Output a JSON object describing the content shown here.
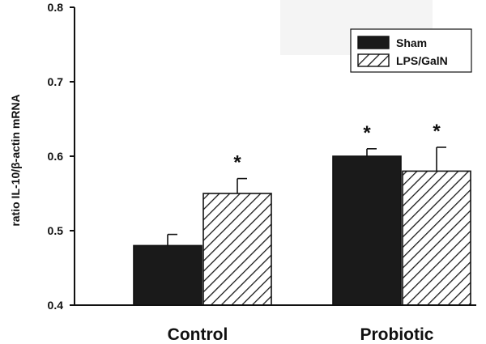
{
  "chart_data": {
    "type": "bar",
    "categories": [
      "Control",
      "Probiotic"
    ],
    "series": [
      {
        "name": "Sham",
        "values": [
          0.48,
          0.6
        ],
        "errors": [
          0.015,
          0.01
        ],
        "significant": [
          false,
          true
        ],
        "fill": "solid",
        "color": "#1a1a1a"
      },
      {
        "name": "LPS/GalN",
        "values": [
          0.55,
          0.58
        ],
        "errors": [
          0.02,
          0.032
        ],
        "significant": [
          true,
          true
        ],
        "fill": "hatched",
        "color": "#1a1a1a"
      }
    ],
    "title": "",
    "xlabel": "",
    "ylabel": "ratio IL-10/β-actin mRNA",
    "ylim": [
      0.4,
      0.8
    ],
    "yticks": [
      0.4,
      0.5,
      0.6,
      0.7,
      0.8
    ],
    "ytick_labels": [
      "0.4",
      "0.5",
      "0.6",
      "0.7",
      "0.8"
    ],
    "significance_marker": "*",
    "legend_position": "top-right",
    "grid": false
  }
}
